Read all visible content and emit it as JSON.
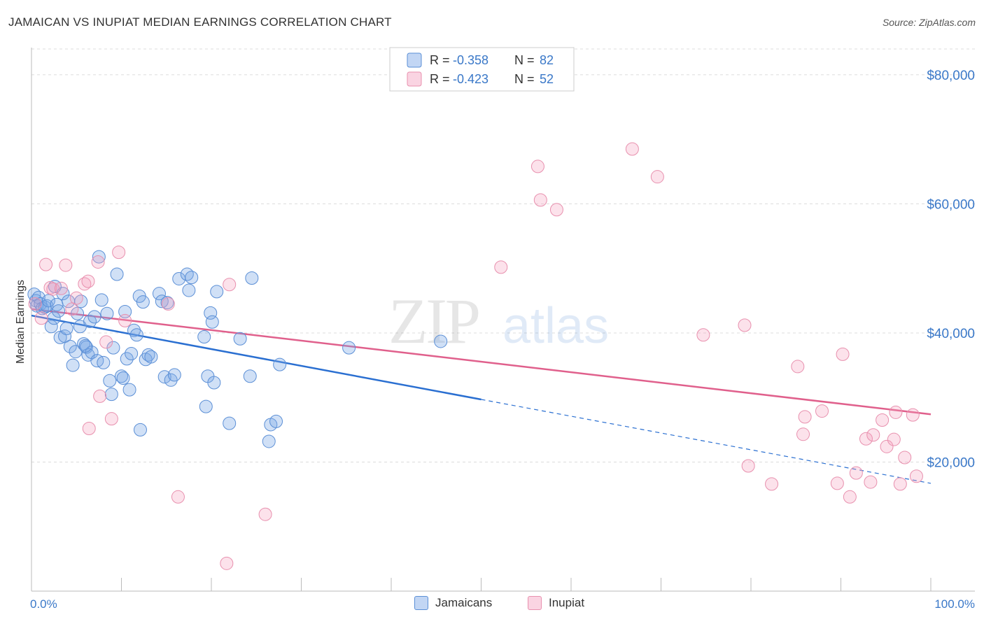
{
  "header": {
    "title": "JAMAICAN VS INUPIAT MEDIAN EARNINGS CORRELATION CHART",
    "source": "Source: ZipAtlas.com"
  },
  "watermark": {
    "zip": "ZIP",
    "atlas": "atlas"
  },
  "colors": {
    "jamaicans_fill": "rgba(120,165,230,0.35)",
    "jamaicans_stroke": "#5b8fd6",
    "jamaicans_line": "#2a6fd1",
    "inupiat_fill": "rgba(245,160,190,0.30)",
    "inupiat_stroke": "#e890ae",
    "inupiat_line": "#e0608c",
    "tick_label": "#3a78c8"
  },
  "legend": {
    "jamaicans": {
      "r_label": "R = ",
      "r_value": "-0.358",
      "n_label": "N = ",
      "n_value": "82"
    },
    "inupiat": {
      "r_label": "R = ",
      "r_value": "-0.423",
      "n_label": "N = ",
      "n_value": "52"
    }
  },
  "chart_data": {
    "type": "scatter",
    "title": "JAMAICAN VS INUPIAT MEDIAN EARNINGS CORRELATION CHART",
    "xlabel": "",
    "ylabel": "Median Earnings",
    "xlim": [
      0,
      100
    ],
    "ylim": [
      0,
      84000
    ],
    "x_tick_labels": [
      "0.0%",
      "100.0%"
    ],
    "y_ticks": [
      20000,
      40000,
      60000,
      80000
    ],
    "y_tick_labels": [
      "$20,000",
      "$40,000",
      "$60,000",
      "$80,000"
    ],
    "grid": true,
    "legend_position": "top-center",
    "series": [
      {
        "name": "Jamaicans",
        "r": -0.358,
        "n": 82,
        "trend": {
          "x_start": 0,
          "y_start": 42700,
          "x_solid_end": 50,
          "y_solid_end": 29700,
          "x_end": 100,
          "y_end": 16700
        },
        "points": [
          [
            0.3,
            46000
          ],
          [
            0.5,
            45000
          ],
          [
            0.6,
            44200
          ],
          [
            0.8,
            45500
          ],
          [
            1.0,
            44500
          ],
          [
            1.2,
            43800
          ],
          [
            1.5,
            44000
          ],
          [
            1.7,
            44200
          ],
          [
            1.9,
            45000
          ],
          [
            2.2,
            41000
          ],
          [
            2.5,
            42300
          ],
          [
            2.6,
            47200
          ],
          [
            2.8,
            44400
          ],
          [
            3.0,
            43400
          ],
          [
            3.2,
            39300
          ],
          [
            3.5,
            46100
          ],
          [
            3.7,
            39500
          ],
          [
            3.9,
            40700
          ],
          [
            4.1,
            44900
          ],
          [
            4.3,
            37900
          ],
          [
            4.6,
            35000
          ],
          [
            4.9,
            37100
          ],
          [
            5.1,
            43000
          ],
          [
            5.4,
            41000
          ],
          [
            5.5,
            44900
          ],
          [
            5.8,
            38300
          ],
          [
            6.1,
            37800
          ],
          [
            6.3,
            36600
          ],
          [
            6.5,
            41800
          ],
          [
            6.7,
            37000
          ],
          [
            7.0,
            42500
          ],
          [
            7.3,
            35700
          ],
          [
            7.5,
            51800
          ],
          [
            7.8,
            45100
          ],
          [
            8.0,
            35400
          ],
          [
            8.4,
            43000
          ],
          [
            8.7,
            32600
          ],
          [
            8.9,
            30500
          ],
          [
            9.1,
            37700
          ],
          [
            9.5,
            49100
          ],
          [
            10.0,
            33300
          ],
          [
            10.2,
            33000
          ],
          [
            10.4,
            43300
          ],
          [
            10.6,
            36000
          ],
          [
            10.9,
            31200
          ],
          [
            11.1,
            36800
          ],
          [
            11.4,
            40400
          ],
          [
            11.7,
            39700
          ],
          [
            12.0,
            45700
          ],
          [
            12.1,
            25000
          ],
          [
            12.4,
            44800
          ],
          [
            12.7,
            35900
          ],
          [
            13.0,
            36600
          ],
          [
            13.3,
            36300
          ],
          [
            14.2,
            46100
          ],
          [
            14.5,
            44900
          ],
          [
            14.8,
            33200
          ],
          [
            15.1,
            44700
          ],
          [
            15.5,
            32700
          ],
          [
            15.9,
            33500
          ],
          [
            16.4,
            48400
          ],
          [
            17.3,
            49100
          ],
          [
            17.5,
            46600
          ],
          [
            17.8,
            48600
          ],
          [
            19.2,
            39400
          ],
          [
            19.4,
            28600
          ],
          [
            19.6,
            33300
          ],
          [
            19.9,
            43100
          ],
          [
            20.1,
            41700
          ],
          [
            20.3,
            32300
          ],
          [
            20.6,
            46400
          ],
          [
            22.0,
            26000
          ],
          [
            23.2,
            39100
          ],
          [
            24.3,
            33300
          ],
          [
            24.5,
            48500
          ],
          [
            26.4,
            23200
          ],
          [
            26.6,
            25800
          ],
          [
            27.2,
            26300
          ],
          [
            27.6,
            35100
          ],
          [
            35.3,
            37700
          ],
          [
            45.5,
            38700
          ],
          [
            6.0,
            38000
          ]
        ]
      },
      {
        "name": "Inupiat",
        "r": -0.423,
        "n": 52,
        "trend": {
          "x_start": 0,
          "y_start": 43700,
          "x_end": 100,
          "y_end": 27400
        },
        "points": [
          [
            0.4,
            44500
          ],
          [
            1.1,
            42300
          ],
          [
            1.6,
            50600
          ],
          [
            2.1,
            47000
          ],
          [
            2.4,
            46800
          ],
          [
            3.3,
            46900
          ],
          [
            3.8,
            50500
          ],
          [
            4.5,
            43700
          ],
          [
            5.0,
            45400
          ],
          [
            5.9,
            47600
          ],
          [
            6.3,
            48000
          ],
          [
            6.4,
            25200
          ],
          [
            7.4,
            51000
          ],
          [
            7.6,
            30200
          ],
          [
            8.3,
            38600
          ],
          [
            8.9,
            26700
          ],
          [
            9.7,
            52500
          ],
          [
            10.4,
            41900
          ],
          [
            15.2,
            44500
          ],
          [
            16.3,
            14600
          ],
          [
            21.7,
            4300
          ],
          [
            22.0,
            47500
          ],
          [
            26.0,
            11900
          ],
          [
            52.2,
            50200
          ],
          [
            56.3,
            65800
          ],
          [
            56.6,
            60600
          ],
          [
            58.4,
            59100
          ],
          [
            66.8,
            68500
          ],
          [
            69.6,
            64200
          ],
          [
            74.7,
            39700
          ],
          [
            79.3,
            41200
          ],
          [
            79.7,
            19400
          ],
          [
            82.3,
            16600
          ],
          [
            85.2,
            34800
          ],
          [
            85.8,
            24300
          ],
          [
            87.9,
            27900
          ],
          [
            89.6,
            16700
          ],
          [
            90.2,
            36700
          ],
          [
            91.7,
            18300
          ],
          [
            92.8,
            23600
          ],
          [
            93.3,
            16900
          ],
          [
            93.6,
            24200
          ],
          [
            94.6,
            26500
          ],
          [
            95.1,
            22400
          ],
          [
            95.9,
            23500
          ],
          [
            96.1,
            27700
          ],
          [
            96.6,
            16600
          ],
          [
            97.1,
            20700
          ],
          [
            98.0,
            27300
          ],
          [
            98.4,
            17800
          ],
          [
            86.0,
            27000
          ],
          [
            91.0,
            14600
          ]
        ]
      }
    ]
  },
  "bottom_legend": {
    "jamaicans_label": "Jamaicans",
    "inupiat_label": "Inupiat"
  }
}
